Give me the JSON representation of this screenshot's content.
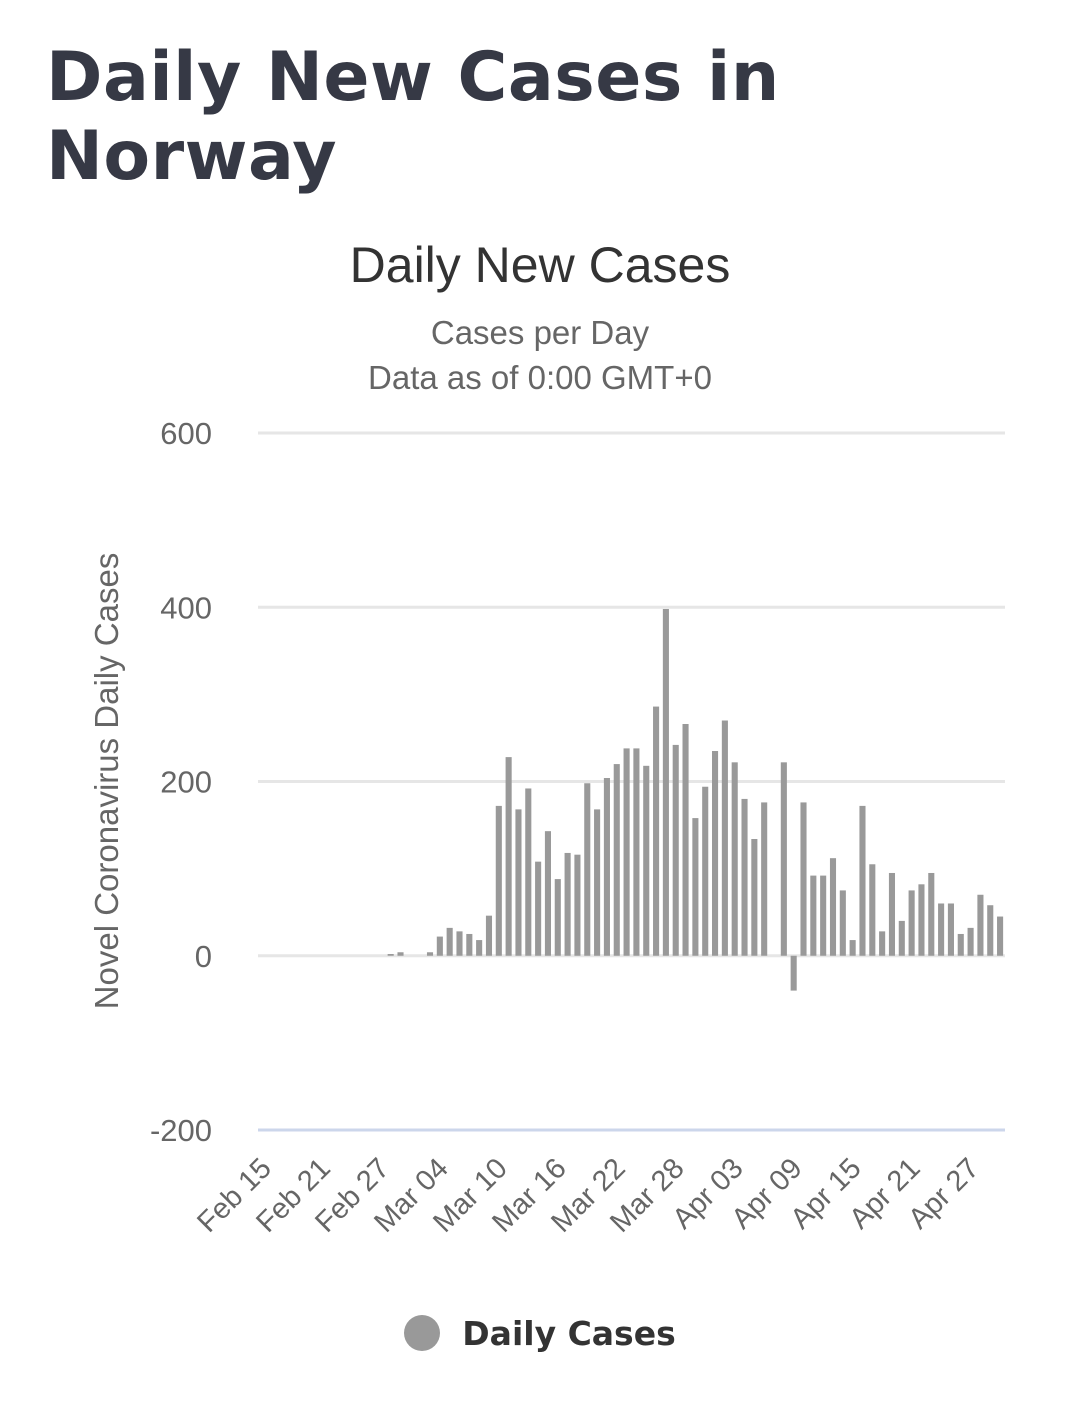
{
  "page": {
    "title": "Daily New Cases in Norway"
  },
  "chart_data": {
    "type": "bar",
    "title": "Daily New Cases",
    "subtitle_lines": [
      "Cases per Day",
      "Data as of 0:00 GMT+0"
    ],
    "ylabel": "Novel Coronavirus Daily Cases",
    "ylim": [
      -200,
      600
    ],
    "yticks": [
      -200,
      0,
      200,
      400,
      600
    ],
    "grid": true,
    "legend_position": "bottom",
    "bar_color": "#999999",
    "x_tick_labels": [
      "Feb 15",
      "Feb 21",
      "Feb 27",
      "Mar 04",
      "Mar 10",
      "Mar 16",
      "Mar 22",
      "Mar 28",
      "Apr 03",
      "Apr 09",
      "Apr 15",
      "Apr 21",
      "Apr 27"
    ],
    "x_tick_step": 6,
    "series": [
      {
        "name": "Daily Cases",
        "x": [
          "Feb 15",
          "Feb 16",
          "Feb 17",
          "Feb 18",
          "Feb 19",
          "Feb 20",
          "Feb 21",
          "Feb 22",
          "Feb 23",
          "Feb 24",
          "Feb 25",
          "Feb 26",
          "Feb 27",
          "Feb 28",
          "Feb 29",
          "Mar 01",
          "Mar 02",
          "Mar 03",
          "Mar 04",
          "Mar 05",
          "Mar 06",
          "Mar 07",
          "Mar 08",
          "Mar 09",
          "Mar 10",
          "Mar 11",
          "Mar 12",
          "Mar 13",
          "Mar 14",
          "Mar 15",
          "Mar 16",
          "Mar 17",
          "Mar 18",
          "Mar 19",
          "Mar 20",
          "Mar 21",
          "Mar 22",
          "Mar 23",
          "Mar 24",
          "Mar 25",
          "Mar 26",
          "Mar 27",
          "Mar 28",
          "Mar 29",
          "Mar 30",
          "Mar 31",
          "Apr 01",
          "Apr 02",
          "Apr 03",
          "Apr 04",
          "Apr 05",
          "Apr 06",
          "Apr 07",
          "Apr 08",
          "Apr 09",
          "Apr 10",
          "Apr 11",
          "Apr 12",
          "Apr 13",
          "Apr 14",
          "Apr 15",
          "Apr 16",
          "Apr 17",
          "Apr 18",
          "Apr 19",
          "Apr 20",
          "Apr 21",
          "Apr 22",
          "Apr 23",
          "Apr 24",
          "Apr 25",
          "Apr 26",
          "Apr 27",
          "Apr 28",
          "Apr 29",
          "Apr 30"
        ],
        "values": [
          0,
          0,
          0,
          0,
          0,
          0,
          0,
          0,
          0,
          0,
          0,
          0,
          0,
          2,
          4,
          0,
          0,
          4,
          22,
          32,
          28,
          25,
          18,
          46,
          172,
          228,
          168,
          192,
          108,
          143,
          88,
          118,
          116,
          198,
          168,
          204,
          220,
          238,
          238,
          218,
          286,
          398,
          242,
          266,
          158,
          194,
          235,
          270,
          222,
          180,
          134,
          176,
          0,
          222,
          -40,
          176,
          92,
          92,
          112,
          75,
          18,
          172,
          105,
          28,
          95,
          40,
          75,
          82,
          95,
          60,
          60,
          25,
          32,
          70,
          58,
          45
        ]
      }
    ]
  }
}
